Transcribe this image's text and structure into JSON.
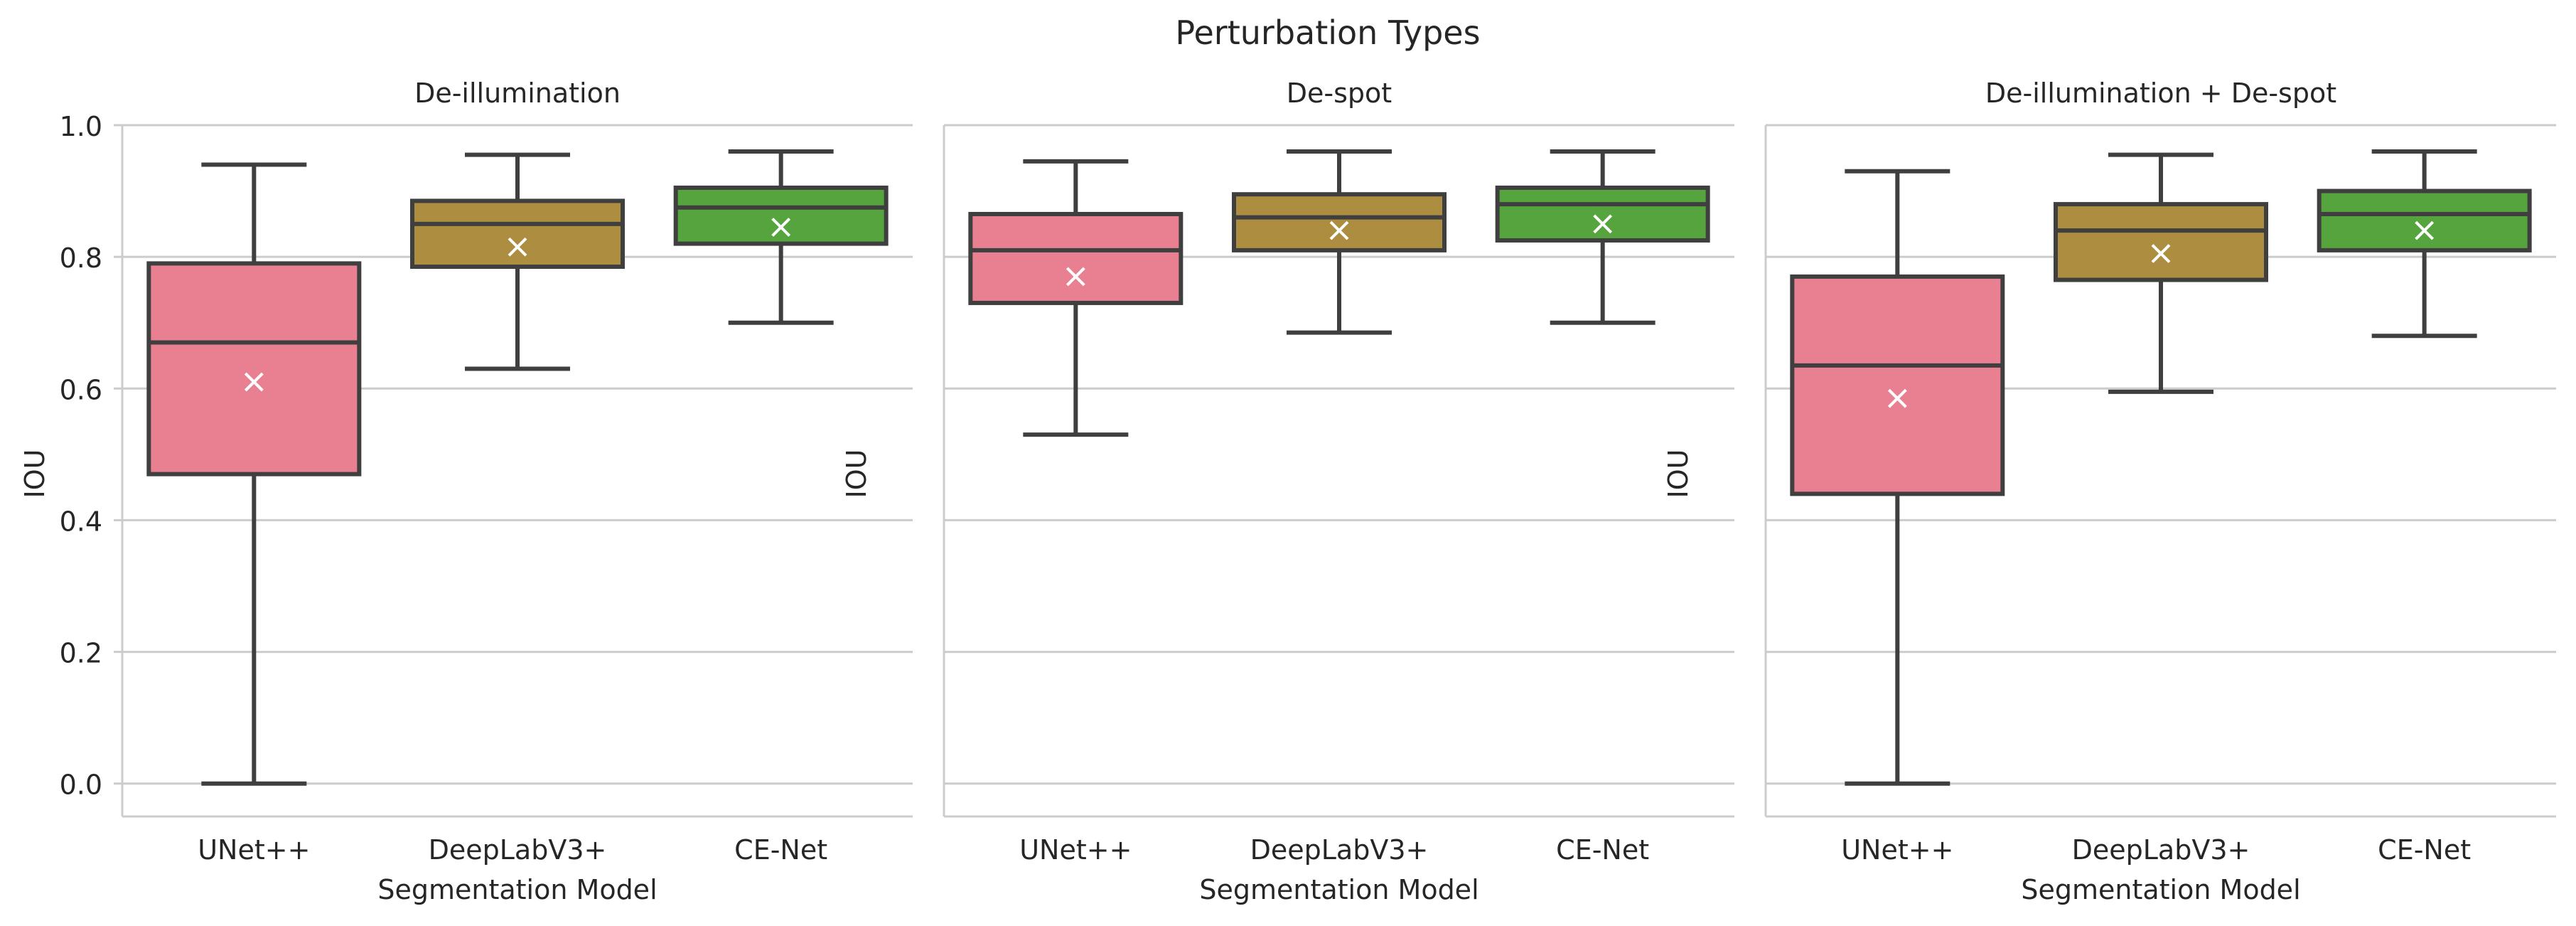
{
  "figure": {
    "title": "Perturbation Types",
    "ylabel": "IOU",
    "xlabel": "Segmentation Model",
    "mean_marker": "x",
    "colors": {
      "UNet++": "#e88092",
      "DeepLabV3+": "#ad8d3f",
      "CE-Net": "#55a43d",
      "box_line": "#3f3f3f",
      "grid": "#cccccc",
      "mean_marker": "#ffffff"
    }
  },
  "chart_data": {
    "type": "box",
    "categories": [
      "UNet++",
      "DeepLabV3+",
      "CE-Net"
    ],
    "ylim": [
      -0.05,
      1.0
    ],
    "yticks": [
      "0.0",
      "0.2",
      "0.4",
      "0.6",
      "0.8",
      "1.0"
    ],
    "grid": true,
    "panels": [
      {
        "title": "De-illumination",
        "boxes": [
          {
            "category": "UNet++",
            "whisker_low": 0.0,
            "q1": 0.47,
            "median": 0.67,
            "q3": 0.79,
            "whisker_high": 0.94,
            "mean": 0.61
          },
          {
            "category": "DeepLabV3+",
            "whisker_low": 0.63,
            "q1": 0.785,
            "median": 0.85,
            "q3": 0.885,
            "whisker_high": 0.955,
            "mean": 0.815
          },
          {
            "category": "CE-Net",
            "whisker_low": 0.7,
            "q1": 0.82,
            "median": 0.875,
            "q3": 0.905,
            "whisker_high": 0.96,
            "mean": 0.845
          }
        ]
      },
      {
        "title": "De-spot",
        "boxes": [
          {
            "category": "UNet++",
            "whisker_low": 0.53,
            "q1": 0.73,
            "median": 0.81,
            "q3": 0.865,
            "whisker_high": 0.945,
            "mean": 0.77
          },
          {
            "category": "DeepLabV3+",
            "whisker_low": 0.685,
            "q1": 0.81,
            "median": 0.86,
            "q3": 0.895,
            "whisker_high": 0.96,
            "mean": 0.84
          },
          {
            "category": "CE-Net",
            "whisker_low": 0.7,
            "q1": 0.825,
            "median": 0.88,
            "q3": 0.905,
            "whisker_high": 0.96,
            "mean": 0.85
          }
        ]
      },
      {
        "title": "De-illumination + De-spot",
        "boxes": [
          {
            "category": "UNet++",
            "whisker_low": 0.0,
            "q1": 0.44,
            "median": 0.635,
            "q3": 0.77,
            "whisker_high": 0.93,
            "mean": 0.585
          },
          {
            "category": "DeepLabV3+",
            "whisker_low": 0.595,
            "q1": 0.765,
            "median": 0.84,
            "q3": 0.88,
            "whisker_high": 0.955,
            "mean": 0.805
          },
          {
            "category": "CE-Net",
            "whisker_low": 0.68,
            "q1": 0.81,
            "median": 0.865,
            "q3": 0.9,
            "whisker_high": 0.96,
            "mean": 0.84
          }
        ]
      }
    ]
  }
}
